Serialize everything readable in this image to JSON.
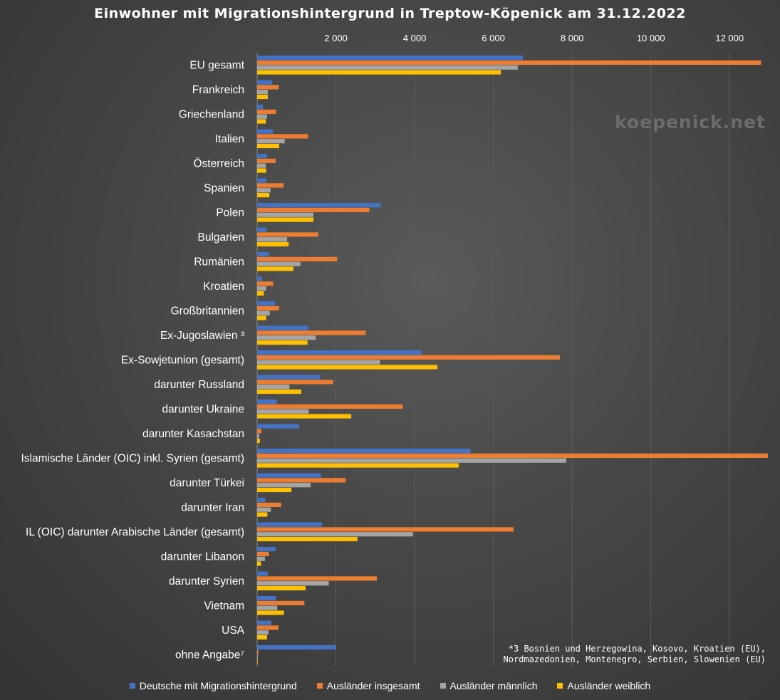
{
  "chart_data": {
    "type": "bar",
    "orientation": "horizontal",
    "title": "Einwohner mit Migrationshintergrund in Treptow-Köpenick am 31.12.2022",
    "xlim": [
      0,
      13000
    ],
    "x_ticks": [
      2000,
      4000,
      6000,
      8000,
      10000,
      12000
    ],
    "x_tick_labels": [
      "2 000",
      "4 000",
      "6 000",
      "8 000",
      "10 000",
      "12 000"
    ],
    "x_axis_position": "top",
    "grid": "vertical",
    "legend": "bottom",
    "categories": [
      "EU gesamt",
      "Frankreich",
      "Griechenland",
      "Italien",
      "Österreich",
      "Spanien",
      "Polen",
      "Bulgarien",
      "Rumänien",
      "Kroatien",
      "Großbritannien",
      "Ex-Jugoslawien ³",
      "Ex-Sowjetunion (gesamt)",
      "darunter Russland",
      "darunter Ukraine",
      "darunter Kasachstan",
      "Islamische Länder (OIC) inkl. Syrien (gesamt)",
      "darunter Türkei",
      "darunter Iran",
      "IL (OIC) darunter Arabische Länder (gesamt)",
      "darunter Libanon",
      "darunter Syrien",
      "Vietnam",
      "USA",
      "ohne Angabe⁷"
    ],
    "series": [
      {
        "name": "Deutsche mit Migrationshintergrund",
        "color": "#4472c4",
        "values": [
          6750,
          380,
          150,
          400,
          250,
          230,
          3140,
          240,
          300,
          130,
          450,
          1300,
          4170,
          1600,
          500,
          1070,
          5420,
          1620,
          210,
          1650,
          470,
          270,
          480,
          360,
          2000
        ]
      },
      {
        "name": "Ausländer insgesamt",
        "color": "#ed7d31",
        "values": [
          12800,
          550,
          480,
          1290,
          470,
          670,
          2850,
          1550,
          2030,
          410,
          560,
          2760,
          7690,
          1930,
          3700,
          110,
          12970,
          2250,
          610,
          6510,
          300,
          3040,
          1200,
          540,
          30
        ]
      },
      {
        "name": "Ausländer männlich",
        "color": "#a5a5a5",
        "values": [
          6620,
          270,
          250,
          700,
          220,
          340,
          1430,
          760,
          1100,
          230,
          320,
          1490,
          3120,
          820,
          1310,
          50,
          7850,
          1360,
          350,
          3960,
          200,
          1820,
          510,
          290,
          15
        ]
      },
      {
        "name": "Ausländer weiblich",
        "color": "#ffc000",
        "values": [
          6190,
          270,
          220,
          560,
          230,
          310,
          1430,
          800,
          920,
          170,
          230,
          1280,
          4580,
          1120,
          2390,
          70,
          5120,
          870,
          260,
          2550,
          100,
          1230,
          680,
          250,
          10
        ]
      }
    ],
    "footnote": "*3 Bosnien und Herzegowina, Kosovo, Kroatien (EU),\nNordmazedonien, Montenegro, Serbien, Slowenien (EU)"
  },
  "watermark": "koepenick.net"
}
